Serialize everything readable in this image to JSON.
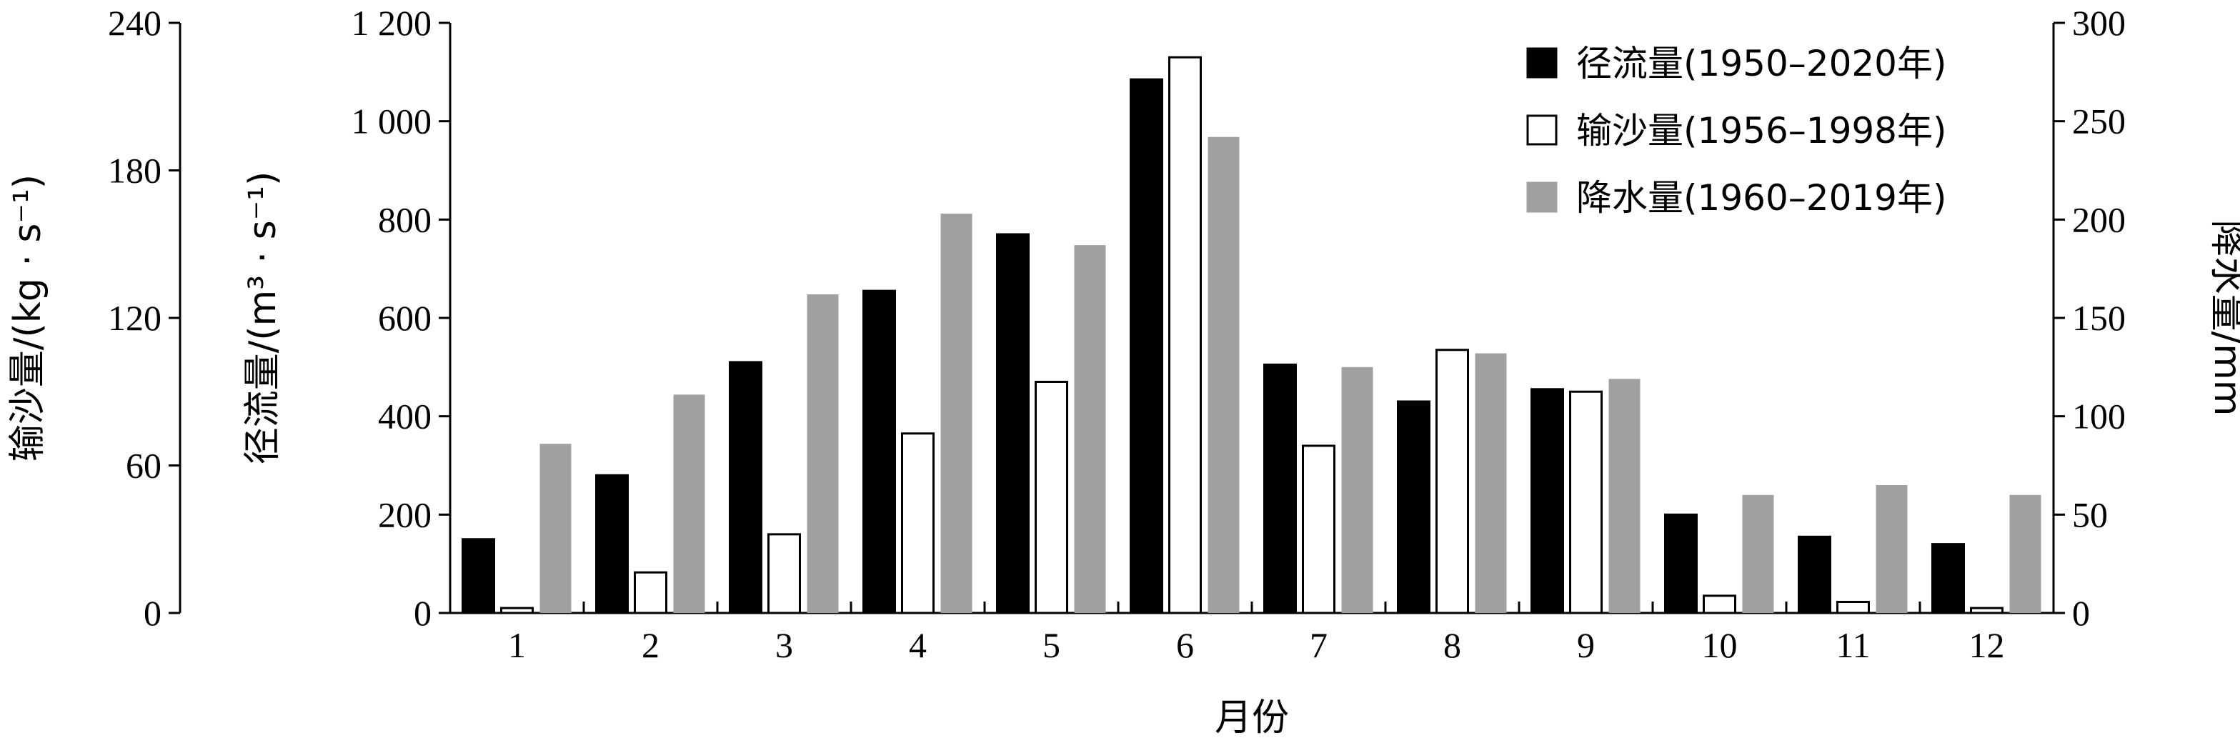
{
  "chart_data": {
    "type": "bar",
    "xlabel": "月份",
    "categories": [
      "1",
      "2",
      "3",
      "4",
      "5",
      "6",
      "7",
      "8",
      "9",
      "10",
      "11",
      "12"
    ],
    "series": [
      {
        "name": "径流量(1950–2020年)",
        "axis": "runoff",
        "color": "#000000",
        "values": [
          150,
          280,
          510,
          655,
          770,
          1085,
          505,
          430,
          455,
          200,
          155,
          140
        ]
      },
      {
        "name": "输沙量(1956–1998年)",
        "axis": "sediment",
        "color": "#ffffff",
        "values": [
          2,
          16.5,
          32,
          73,
          94,
          226,
          68,
          107,
          90,
          7,
          4.5,
          2
        ]
      },
      {
        "name": "降水量(1960–2019年)",
        "axis": "precip",
        "color": "#a0a0a0",
        "values": [
          86,
          111,
          162,
          203,
          187,
          242,
          125,
          132,
          119,
          60,
          65,
          60
        ]
      }
    ],
    "axes": {
      "sediment": {
        "label": "输沙量/(kg · s⁻¹)",
        "range": [
          0,
          240
        ],
        "ticks": [
          "0",
          "60",
          "120",
          "180",
          "240"
        ]
      },
      "runoff": {
        "label": "径流量/(m³ · s⁻¹)",
        "range": [
          0,
          1200
        ],
        "ticks": [
          "0",
          "200",
          "400",
          "600",
          "800",
          "1 000",
          "1 200"
        ]
      },
      "precip": {
        "label": "降水量/mm",
        "range": [
          0,
          300
        ],
        "ticks": [
          "0",
          "50",
          "100",
          "150",
          "200",
          "250",
          "300"
        ]
      }
    },
    "legend_position": "top-right",
    "grid": false
  }
}
